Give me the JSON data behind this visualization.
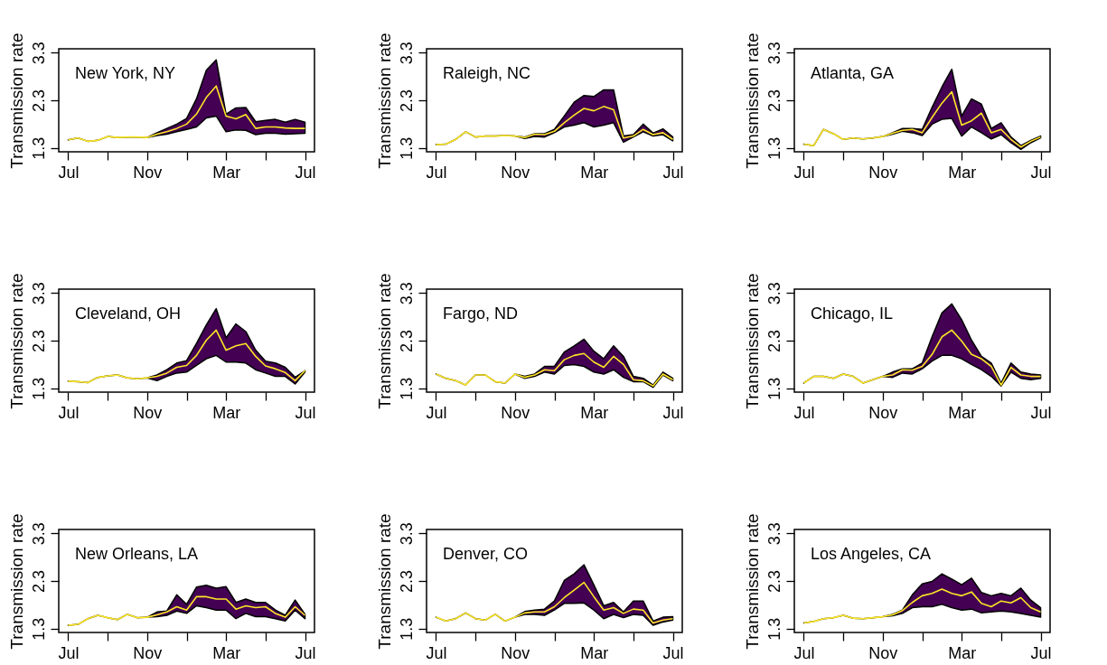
{
  "chart_data": [
    {
      "type": "line",
      "title": "New York, NY",
      "ylabel": "Transmission rate",
      "categories": [
        "Jul",
        null,
        null,
        null,
        null,
        null,
        null,
        null,
        "Nov",
        null,
        null,
        null,
        null,
        null,
        null,
        null,
        "Mar",
        null,
        null,
        null,
        null,
        null,
        null,
        null,
        "Jul"
      ],
      "ylim": [
        1.22,
        3.38
      ],
      "yticks": [
        1.3,
        2.3,
        3.3
      ],
      "grid": false,
      "series": [
        {
          "color": "#fde725",
          "values": [
            1.47,
            1.51,
            1.44,
            1.46,
            1.54,
            1.52,
            1.53,
            1.53,
            1.52,
            1.59,
            1.64,
            1.71,
            1.8,
            2.01,
            2.36,
            2.6,
            1.97,
            1.91,
            2.0,
            1.71,
            1.74,
            1.74,
            1.72,
            1.71,
            1.71
          ],
          "lower": [
            1.47,
            1.51,
            1.44,
            1.46,
            1.54,
            1.52,
            1.53,
            1.53,
            1.52,
            1.56,
            1.59,
            1.64,
            1.69,
            1.74,
            1.93,
            1.97,
            1.64,
            1.68,
            1.67,
            1.58,
            1.61,
            1.61,
            1.59,
            1.6,
            1.61
          ],
          "upper": [
            1.47,
            1.51,
            1.44,
            1.46,
            1.54,
            1.52,
            1.53,
            1.53,
            1.52,
            1.62,
            1.71,
            1.8,
            1.92,
            2.33,
            2.93,
            3.15,
            2.01,
            2.14,
            2.15,
            1.85,
            1.88,
            1.9,
            1.84,
            1.9,
            1.84
          ]
        }
      ]
    },
    {
      "type": "line",
      "title": "Raleigh, NC",
      "ylabel": "Transmission rate",
      "categories": [
        "Jul",
        null,
        null,
        null,
        null,
        null,
        null,
        null,
        "Nov",
        null,
        null,
        null,
        null,
        null,
        null,
        null,
        "Mar",
        null,
        null,
        null,
        null,
        null,
        null,
        null,
        "Jul"
      ],
      "ylim": [
        1.22,
        3.38
      ],
      "yticks": [
        1.3,
        2.3,
        3.3
      ],
      "grid": false,
      "series": [
        {
          "color": "#fde725",
          "values": [
            1.37,
            1.38,
            1.48,
            1.64,
            1.53,
            1.55,
            1.55,
            1.56,
            1.55,
            1.52,
            1.59,
            1.58,
            1.65,
            1.83,
            1.99,
            2.13,
            2.08,
            2.17,
            2.1,
            1.51,
            1.55,
            1.69,
            1.58,
            1.62,
            1.48
          ],
          "lower": [
            1.37,
            1.38,
            1.48,
            1.64,
            1.53,
            1.55,
            1.55,
            1.56,
            1.55,
            1.5,
            1.54,
            1.53,
            1.62,
            1.74,
            1.78,
            1.83,
            1.74,
            1.78,
            1.83,
            1.42,
            1.53,
            1.64,
            1.55,
            1.58,
            1.45
          ],
          "upper": [
            1.37,
            1.38,
            1.48,
            1.64,
            1.53,
            1.55,
            1.55,
            1.56,
            1.55,
            1.53,
            1.6,
            1.6,
            1.69,
            1.97,
            2.26,
            2.4,
            2.38,
            2.52,
            2.52,
            1.55,
            1.58,
            1.8,
            1.61,
            1.7,
            1.53
          ]
        }
      ]
    },
    {
      "type": "line",
      "title": "Atlanta, GA",
      "ylabel": "Transmission rate",
      "categories": [
        "Jul",
        null,
        null,
        null,
        null,
        null,
        null,
        null,
        "Nov",
        null,
        null,
        null,
        null,
        null,
        null,
        null,
        "Mar",
        null,
        null,
        null,
        null,
        null,
        null,
        null,
        "Jul"
      ],
      "ylim": [
        1.22,
        3.38
      ],
      "yticks": [
        1.3,
        2.3,
        3.3
      ],
      "grid": false,
      "series": [
        {
          "color": "#fde725",
          "values": [
            1.38,
            1.35,
            1.69,
            1.6,
            1.48,
            1.51,
            1.49,
            1.51,
            1.54,
            1.61,
            1.67,
            1.69,
            1.62,
            1.94,
            2.24,
            2.48,
            1.78,
            1.87,
            2.03,
            1.62,
            1.69,
            1.48,
            1.32,
            1.44,
            1.53
          ],
          "lower": [
            1.38,
            1.35,
            1.69,
            1.6,
            1.48,
            1.51,
            1.49,
            1.51,
            1.54,
            1.59,
            1.65,
            1.62,
            1.56,
            1.8,
            1.9,
            1.92,
            1.55,
            1.74,
            1.62,
            1.49,
            1.58,
            1.41,
            1.27,
            1.41,
            1.51
          ],
          "upper": [
            1.38,
            1.35,
            1.69,
            1.6,
            1.48,
            1.51,
            1.49,
            1.51,
            1.54,
            1.62,
            1.71,
            1.71,
            1.69,
            2.15,
            2.58,
            2.95,
            1.97,
            2.33,
            2.22,
            1.71,
            1.83,
            1.53,
            1.35,
            1.46,
            1.55
          ]
        }
      ]
    },
    {
      "type": "line",
      "title": "Cleveland, OH",
      "ylabel": "Transmission rate",
      "categories": [
        "Jul",
        null,
        null,
        null,
        null,
        null,
        null,
        null,
        "Nov",
        null,
        null,
        null,
        null,
        null,
        null,
        null,
        "Mar",
        null,
        null,
        null,
        null,
        null,
        null,
        null,
        "Jul"
      ],
      "ylim": [
        1.22,
        3.38
      ],
      "yticks": [
        1.3,
        2.3,
        3.3
      ],
      "grid": false,
      "series": [
        {
          "color": "#fde725",
          "values": [
            1.45,
            1.44,
            1.42,
            1.53,
            1.56,
            1.58,
            1.52,
            1.5,
            1.52,
            1.55,
            1.62,
            1.74,
            1.78,
            1.99,
            2.31,
            2.52,
            2.1,
            2.19,
            2.24,
            1.97,
            1.77,
            1.71,
            1.63,
            1.46,
            1.67
          ],
          "lower": [
            1.45,
            1.44,
            1.42,
            1.53,
            1.56,
            1.58,
            1.52,
            1.5,
            1.52,
            1.46,
            1.55,
            1.62,
            1.64,
            1.78,
            1.92,
            1.99,
            1.85,
            1.85,
            1.83,
            1.69,
            1.62,
            1.55,
            1.55,
            1.39,
            1.64
          ],
          "upper": [
            1.45,
            1.44,
            1.42,
            1.53,
            1.56,
            1.58,
            1.52,
            1.5,
            1.52,
            1.58,
            1.69,
            1.83,
            1.88,
            2.24,
            2.63,
            2.97,
            2.36,
            2.65,
            2.49,
            2.1,
            1.87,
            1.83,
            1.74,
            1.53,
            1.67
          ]
        }
      ]
    },
    {
      "type": "line",
      "title": "Fargo, ND",
      "ylabel": "Transmission rate",
      "categories": [
        "Jul",
        null,
        null,
        null,
        null,
        null,
        null,
        null,
        "Nov",
        null,
        null,
        null,
        null,
        null,
        null,
        null,
        "Mar",
        null,
        null,
        null,
        null,
        null,
        null,
        null,
        "Jul"
      ],
      "ylim": [
        1.22,
        3.38
      ],
      "yticks": [
        1.3,
        2.3,
        3.3
      ],
      "grid": false,
      "series": [
        {
          "color": "#fde725",
          "values": [
            1.6,
            1.51,
            1.46,
            1.37,
            1.58,
            1.58,
            1.44,
            1.41,
            1.6,
            1.53,
            1.58,
            1.69,
            1.67,
            1.9,
            1.99,
            2.03,
            1.85,
            1.74,
            1.97,
            1.8,
            1.48,
            1.46,
            1.35,
            1.6,
            1.48
          ],
          "lower": [
            1.6,
            1.51,
            1.46,
            1.37,
            1.58,
            1.58,
            1.44,
            1.41,
            1.6,
            1.51,
            1.55,
            1.64,
            1.6,
            1.78,
            1.8,
            1.76,
            1.64,
            1.6,
            1.69,
            1.53,
            1.44,
            1.44,
            1.32,
            1.58,
            1.46
          ],
          "upper": [
            1.6,
            1.51,
            1.46,
            1.37,
            1.58,
            1.58,
            1.44,
            1.41,
            1.6,
            1.55,
            1.6,
            1.76,
            1.76,
            2.06,
            2.19,
            2.33,
            2.08,
            1.92,
            2.19,
            1.97,
            1.55,
            1.51,
            1.37,
            1.64,
            1.51
          ]
        }
      ]
    },
    {
      "type": "line",
      "title": "Chicago, IL",
      "ylabel": "Transmission rate",
      "categories": [
        "Jul",
        null,
        null,
        null,
        null,
        null,
        null,
        null,
        "Nov",
        null,
        null,
        null,
        null,
        null,
        null,
        null,
        "Mar",
        null,
        null,
        null,
        null,
        null,
        null,
        null,
        "Jul"
      ],
      "ylim": [
        1.22,
        3.38
      ],
      "yticks": [
        1.3,
        2.3,
        3.3
      ],
      "grid": false,
      "series": [
        {
          "color": "#fde725",
          "values": [
            1.41,
            1.55,
            1.55,
            1.51,
            1.6,
            1.55,
            1.41,
            1.48,
            1.55,
            1.58,
            1.69,
            1.68,
            1.76,
            2.01,
            2.38,
            2.52,
            2.29,
            2.01,
            1.92,
            1.76,
            1.37,
            1.74,
            1.58,
            1.55,
            1.55
          ],
          "lower": [
            1.41,
            1.55,
            1.55,
            1.51,
            1.6,
            1.55,
            1.41,
            1.48,
            1.55,
            1.53,
            1.62,
            1.6,
            1.71,
            1.87,
            1.99,
            1.99,
            1.92,
            1.8,
            1.69,
            1.55,
            1.35,
            1.64,
            1.51,
            1.48,
            1.51
          ],
          "upper": [
            1.41,
            1.55,
            1.55,
            1.51,
            1.6,
            1.55,
            1.41,
            1.48,
            1.55,
            1.64,
            1.71,
            1.71,
            1.83,
            2.38,
            2.88,
            3.07,
            2.74,
            2.31,
            1.97,
            1.83,
            1.41,
            1.83,
            1.64,
            1.6,
            1.58
          ]
        }
      ]
    },
    {
      "type": "line",
      "title": "New Orleans, LA",
      "ylabel": "Transmission rate",
      "categories": [
        "Jul",
        null,
        null,
        null,
        null,
        null,
        null,
        null,
        "Nov",
        null,
        null,
        null,
        null,
        null,
        null,
        null,
        "Mar",
        null,
        null,
        null,
        null,
        null,
        null,
        null,
        "Jul"
      ],
      "ylim": [
        1.22,
        3.38
      ],
      "yticks": [
        1.3,
        2.3,
        3.3
      ],
      "grid": false,
      "series": [
        {
          "color": "#fde725",
          "values": [
            1.37,
            1.39,
            1.51,
            1.58,
            1.53,
            1.49,
            1.6,
            1.53,
            1.54,
            1.59,
            1.65,
            1.76,
            1.69,
            1.97,
            1.97,
            1.92,
            1.92,
            1.71,
            1.78,
            1.74,
            1.76,
            1.62,
            1.54,
            1.76,
            1.58
          ],
          "lower": [
            1.37,
            1.39,
            1.51,
            1.58,
            1.53,
            1.49,
            1.6,
            1.53,
            1.54,
            1.55,
            1.58,
            1.67,
            1.62,
            1.78,
            1.74,
            1.69,
            1.69,
            1.51,
            1.62,
            1.55,
            1.55,
            1.51,
            1.46,
            1.69,
            1.51
          ],
          "upper": [
            1.37,
            1.39,
            1.51,
            1.58,
            1.53,
            1.49,
            1.6,
            1.53,
            1.54,
            1.65,
            1.67,
            2.01,
            1.81,
            2.17,
            2.21,
            2.15,
            2.18,
            1.85,
            1.92,
            1.85,
            1.85,
            1.69,
            1.58,
            1.9,
            1.6
          ]
        }
      ]
    },
    {
      "type": "line",
      "title": "Denver, CO",
      "ylabel": "Transmission rate",
      "categories": [
        "Jul",
        null,
        null,
        null,
        null,
        null,
        null,
        null,
        "Nov",
        null,
        null,
        null,
        null,
        null,
        null,
        null,
        "Mar",
        null,
        null,
        null,
        null,
        null,
        null,
        null,
        "Jul"
      ],
      "ylim": [
        1.22,
        3.38
      ],
      "yticks": [
        1.3,
        2.3,
        3.3
      ],
      "grid": false,
      "series": [
        {
          "color": "#fde725",
          "values": [
            1.54,
            1.46,
            1.51,
            1.63,
            1.51,
            1.48,
            1.6,
            1.46,
            1.54,
            1.63,
            1.65,
            1.65,
            1.76,
            1.95,
            2.11,
            2.27,
            1.97,
            1.69,
            1.74,
            1.62,
            1.71,
            1.69,
            1.42,
            1.48,
            1.51
          ],
          "lower": [
            1.54,
            1.46,
            1.51,
            1.63,
            1.51,
            1.48,
            1.6,
            1.46,
            1.54,
            1.6,
            1.6,
            1.58,
            1.69,
            1.83,
            1.83,
            1.84,
            1.69,
            1.51,
            1.6,
            1.53,
            1.6,
            1.58,
            1.37,
            1.44,
            1.48
          ],
          "upper": [
            1.54,
            1.46,
            1.51,
            1.63,
            1.51,
            1.48,
            1.6,
            1.46,
            1.54,
            1.66,
            1.69,
            1.71,
            1.88,
            2.31,
            2.45,
            2.64,
            2.22,
            1.78,
            1.85,
            1.65,
            1.88,
            1.88,
            1.46,
            1.54,
            1.55
          ]
        }
      ]
    },
    {
      "type": "line",
      "title": "Los Angeles, CA",
      "ylabel": "Transmission rate",
      "categories": [
        "Jul",
        null,
        null,
        null,
        null,
        null,
        null,
        null,
        "Nov",
        null,
        null,
        null,
        null,
        null,
        null,
        null,
        "Mar",
        null,
        null,
        null,
        null,
        null,
        null,
        null,
        "Jul"
      ],
      "ylim": [
        1.22,
        3.38
      ],
      "yticks": [
        1.3,
        2.3,
        3.3
      ],
      "grid": false,
      "series": [
        {
          "color": "#fde725",
          "values": [
            1.42,
            1.45,
            1.51,
            1.53,
            1.58,
            1.52,
            1.51,
            1.53,
            1.55,
            1.59,
            1.68,
            1.85,
            1.99,
            2.04,
            2.13,
            2.04,
            1.99,
            2.07,
            1.83,
            1.76,
            1.88,
            1.84,
            1.95,
            1.74,
            1.65
          ],
          "lower": [
            1.42,
            1.45,
            1.51,
            1.53,
            1.58,
            1.52,
            1.51,
            1.53,
            1.55,
            1.57,
            1.62,
            1.74,
            1.76,
            1.76,
            1.81,
            1.74,
            1.69,
            1.71,
            1.63,
            1.65,
            1.67,
            1.65,
            1.62,
            1.58,
            1.54
          ],
          "upper": [
            1.42,
            1.45,
            1.51,
            1.53,
            1.58,
            1.52,
            1.51,
            1.53,
            1.55,
            1.6,
            1.69,
            2.01,
            2.24,
            2.29,
            2.45,
            2.34,
            2.22,
            2.36,
            2.06,
            1.99,
            2.04,
            1.99,
            2.15,
            1.9,
            1.74
          ]
        }
      ]
    }
  ]
}
